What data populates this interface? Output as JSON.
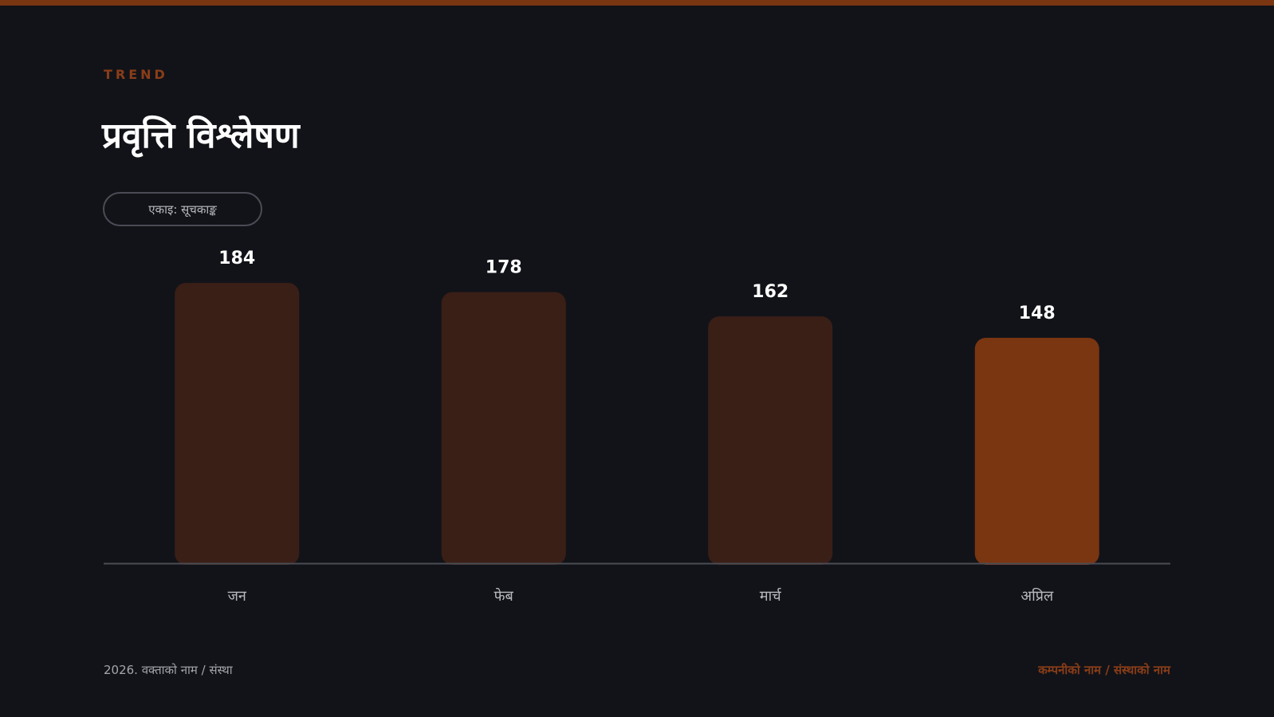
{
  "header": {
    "eyebrow": "TREND",
    "title": "प्रवृत्ति विश्लेषण",
    "unit_label": "एकाइ: सूचकाङ्क"
  },
  "colors": {
    "accent": "#7a3511",
    "bar_muted": "#3a1f17",
    "bar_highlight": "#7a3511",
    "background": "#121318",
    "axis_line": "#4a4c55",
    "value_label": "#ffffff",
    "category_label": "#b8b9bf"
  },
  "chart_data": {
    "type": "bar",
    "categories": [
      "जन",
      "फेब",
      "मार्च",
      "अप्रिल"
    ],
    "values": [
      184,
      178,
      162,
      148
    ],
    "highlight_index": 3,
    "ylim": [
      0,
      190
    ],
    "grid": false,
    "title": "",
    "xlabel": "",
    "ylabel": ""
  },
  "footer": {
    "left": "2026. वक्ताको नाम / संस्था",
    "right": "कम्पनीको नाम / संस्थाको नाम"
  }
}
